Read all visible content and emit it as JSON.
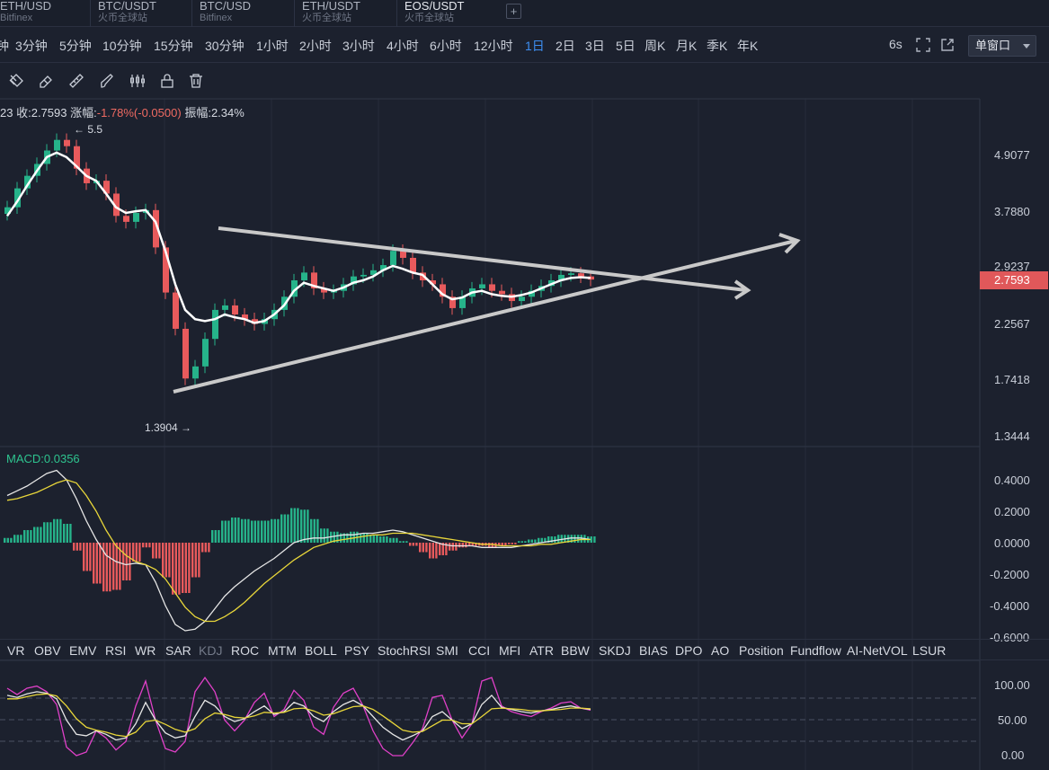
{
  "tabs": [
    {
      "name": "ETH/USD",
      "sub": "Bitfinex",
      "active": false
    },
    {
      "name": "BTC/USDT",
      "sub": "火币全球站",
      "active": false
    },
    {
      "name": "BTC/USD",
      "sub": "Bitfinex",
      "active": false
    },
    {
      "name": "ETH/USDT",
      "sub": "火币全球站",
      "active": false
    },
    {
      "name": "EOS/USDT",
      "sub": "火币全球站",
      "active": true
    }
  ],
  "tab_add": "+",
  "timeframes": [
    "钟",
    "3分钟",
    "5分钟",
    "10分钟",
    "15分钟",
    "30分钟",
    "1小时",
    "2小时",
    "3小时",
    "4小时",
    "6小时",
    "12小时",
    "1日",
    "2日",
    "3日",
    "5日",
    "周K",
    "月K",
    "季K",
    "年K"
  ],
  "active_timeframe": "1日",
  "refresh": "6s",
  "window_mode": "单窗口",
  "toolbar_icons": [
    "magnet-icon",
    "eraser-icon",
    "ruler-icon",
    "brush-icon",
    "candles-icon",
    "lock-icon",
    "trash-icon"
  ],
  "info": {
    "prefix": "23",
    "close_label": "收:",
    "close": "2.7593",
    "change_label": "涨幅:",
    "change": "-1.78%(-0.0500)",
    "amp_label": "振幅:",
    "amp": "2.34%"
  },
  "price_axis": [
    "4.9077",
    "3.7880",
    "2.9237",
    "2.2567",
    "1.7418",
    "1.3444"
  ],
  "current_price": "2.7593",
  "high_marker": "5.5",
  "low_marker": "1.3904",
  "macd_label": "MACD:0.0356",
  "macd_axis": [
    "0.4000",
    "0.2000",
    "0.0000",
    "-0.2000",
    "-0.4000",
    "-0.6000"
  ],
  "kdj_axis": [
    "100.00",
    "50.00",
    "0.00"
  ],
  "indicators": [
    "VR",
    "OBV",
    "EMV",
    "RSI",
    "WR",
    "SAR",
    "KDJ",
    "ROC",
    "MTM",
    "BOLL",
    "PSY",
    "StochRSI",
    "SMI",
    "CCI",
    "MFI",
    "ATR",
    "BBW",
    "SKDJ",
    "BIAS",
    "DPO",
    "AO",
    "Position",
    "Fundflow",
    "AI-NetVOL",
    "LSUR"
  ],
  "active_indicator": "KDJ",
  "colors": {
    "up": "#26b38a",
    "down": "#e85a5c",
    "accent": "#3d8ef0"
  },
  "chart_data": {
    "type": "line",
    "scale": "log",
    "ylim": [
      1.3,
      6.0
    ],
    "price_anchors": [
      [
        4.9077,
        172
      ],
      [
        1.3444,
        485
      ]
    ],
    "close_series": [
      3.85,
      4.2,
      4.45,
      4.7,
      5.0,
      5.25,
      5.1,
      4.6,
      4.3,
      4.35,
      4.1,
      3.7,
      3.6,
      3.75,
      3.8,
      3.2,
      2.6,
      2.2,
      1.75,
      1.85,
      2.1,
      2.4,
      2.45,
      2.35,
      2.3,
      2.25,
      2.3,
      2.4,
      2.55,
      2.75,
      2.85,
      2.65,
      2.6,
      2.62,
      2.7,
      2.8,
      2.82,
      2.88,
      2.95,
      3.15,
      3.05,
      2.85,
      2.75,
      2.7,
      2.55,
      2.42,
      2.55,
      2.65,
      2.7,
      2.62,
      2.58,
      2.5,
      2.55,
      2.62,
      2.68,
      2.75,
      2.82,
      2.84,
      2.8,
      2.76
    ],
    "ma_series": [
      3.7,
      3.95,
      4.25,
      4.55,
      4.85,
      4.95,
      4.85,
      4.65,
      4.45,
      4.35,
      4.1,
      3.85,
      3.75,
      3.78,
      3.8,
      3.6,
      3.15,
      2.7,
      2.4,
      2.3,
      2.28,
      2.3,
      2.35,
      2.32,
      2.3,
      2.26,
      2.28,
      2.35,
      2.45,
      2.62,
      2.72,
      2.68,
      2.65,
      2.62,
      2.66,
      2.72,
      2.75,
      2.8,
      2.88,
      2.94,
      2.9,
      2.85,
      2.82,
      2.7,
      2.58,
      2.52,
      2.54,
      2.6,
      2.62,
      2.58,
      2.56,
      2.55,
      2.57,
      2.6,
      2.65,
      2.7,
      2.75,
      2.78,
      2.79,
      2.78
    ],
    "macd_hist": [
      0.03,
      0.05,
      0.08,
      0.1,
      0.13,
      0.15,
      0.12,
      -0.05,
      -0.18,
      -0.26,
      -0.31,
      -0.3,
      -0.24,
      -0.12,
      -0.03,
      -0.1,
      -0.22,
      -0.33,
      -0.32,
      -0.22,
      -0.06,
      0.08,
      0.14,
      0.16,
      0.15,
      0.14,
      0.14,
      0.15,
      0.18,
      0.22,
      0.21,
      0.15,
      0.09,
      0.07,
      0.06,
      0.07,
      0.06,
      0.05,
      0.04,
      0.03,
      0.01,
      -0.02,
      -0.06,
      -0.1,
      -0.08,
      -0.05,
      -0.03,
      -0.02,
      -0.02,
      -0.03,
      -0.02,
      -0.01,
      0.01,
      0.02,
      0.03,
      0.04,
      0.05,
      0.05,
      0.05,
      0.04
    ],
    "macd_dif": [
      0.3,
      0.33,
      0.36,
      0.4,
      0.44,
      0.46,
      0.4,
      0.28,
      0.14,
      0.02,
      -0.08,
      -0.12,
      -0.14,
      -0.13,
      -0.14,
      -0.25,
      -0.4,
      -0.52,
      -0.56,
      -0.55,
      -0.5,
      -0.42,
      -0.34,
      -0.28,
      -0.23,
      -0.18,
      -0.14,
      -0.1,
      -0.05,
      0.0,
      0.02,
      0.03,
      0.03,
      0.04,
      0.05,
      0.05,
      0.06,
      0.06,
      0.07,
      0.08,
      0.07,
      0.05,
      0.03,
      0.01,
      -0.01,
      -0.02,
      -0.02,
      -0.02,
      -0.03,
      -0.03,
      -0.03,
      -0.03,
      -0.02,
      -0.01,
      0.0,
      0.01,
      0.02,
      0.03,
      0.03,
      0.02
    ],
    "macd_dea": [
      0.27,
      0.28,
      0.3,
      0.32,
      0.35,
      0.38,
      0.4,
      0.38,
      0.3,
      0.2,
      0.08,
      -0.02,
      -0.08,
      -0.12,
      -0.14,
      -0.17,
      -0.23,
      -0.32,
      -0.41,
      -0.47,
      -0.5,
      -0.5,
      -0.47,
      -0.43,
      -0.38,
      -0.32,
      -0.26,
      -0.21,
      -0.16,
      -0.11,
      -0.07,
      -0.03,
      -0.01,
      0.01,
      0.02,
      0.03,
      0.04,
      0.05,
      0.05,
      0.06,
      0.06,
      0.06,
      0.05,
      0.04,
      0.03,
      0.02,
      0.01,
      0.0,
      -0.01,
      -0.01,
      -0.02,
      -0.02,
      -0.02,
      -0.02,
      -0.01,
      -0.01,
      0.0,
      0.01,
      0.02,
      0.02
    ],
    "kdj_k": [
      85,
      82,
      87,
      90,
      88,
      80,
      50,
      30,
      28,
      35,
      30,
      22,
      25,
      45,
      75,
      50,
      32,
      25,
      28,
      55,
      78,
      70,
      55,
      48,
      52,
      62,
      70,
      58,
      62,
      75,
      70,
      55,
      48,
      62,
      72,
      78,
      70,
      55,
      40,
      30,
      22,
      28,
      35,
      55,
      62,
      50,
      38,
      45,
      72,
      85,
      68,
      65,
      62,
      60,
      63,
      65,
      68,
      70,
      67,
      65
    ],
    "kdj_d": [
      80,
      80,
      83,
      86,
      87,
      84,
      70,
      52,
      40,
      36,
      33,
      29,
      27,
      33,
      48,
      50,
      44,
      37,
      33,
      38,
      52,
      60,
      58,
      54,
      53,
      56,
      61,
      60,
      61,
      66,
      67,
      63,
      57,
      59,
      64,
      69,
      70,
      65,
      56,
      46,
      36,
      33,
      34,
      42,
      50,
      50,
      45,
      45,
      55,
      66,
      67,
      66,
      65,
      63,
      63,
      64,
      65,
      67,
      67,
      66
    ],
    "kdj_j": [
      95,
      86,
      95,
      98,
      90,
      72,
      12,
      0,
      5,
      35,
      25,
      8,
      20,
      70,
      105,
      50,
      10,
      5,
      20,
      90,
      110,
      90,
      50,
      35,
      50,
      75,
      88,
      55,
      65,
      92,
      78,
      40,
      30,
      68,
      88,
      95,
      70,
      35,
      10,
      0,
      0,
      18,
      38,
      82,
      85,
      50,
      25,
      45,
      105,
      110,
      70,
      62,
      58,
      55,
      62,
      67,
      74,
      76,
      67,
      64
    ]
  }
}
